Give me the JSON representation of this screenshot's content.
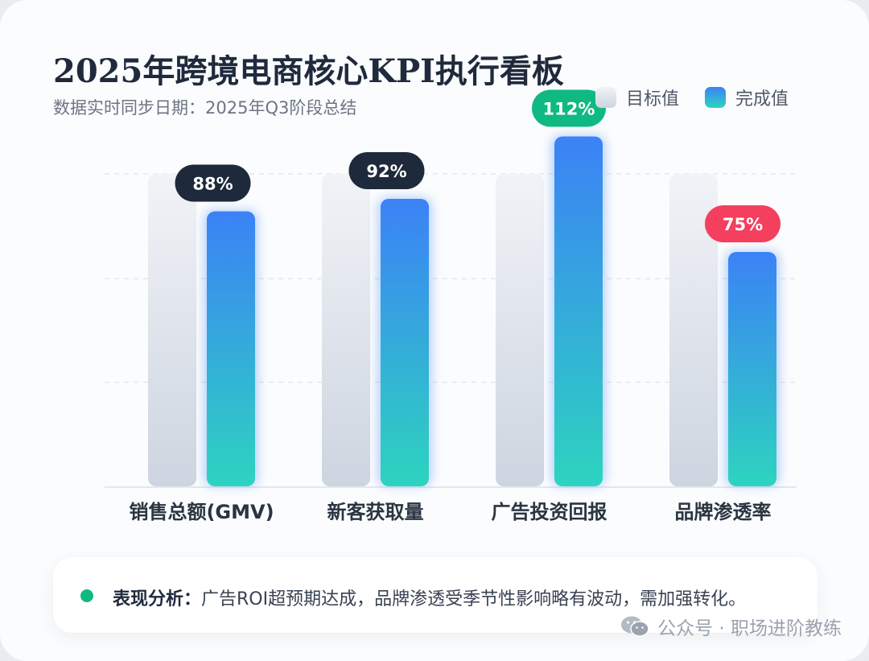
{
  "title": "2025年跨境电商核心KPI执行看板",
  "subtitle": "数据实时同步日期：2025年Q3阶段总结",
  "legend": {
    "target_label": "目标值",
    "actual_label": "完成值"
  },
  "colors": {
    "target_top": "#f1f3f7",
    "target_bottom": "#cdd5e0",
    "actual_top": "#3b82f6",
    "actual_bottom": "#2dd4bf",
    "badge_default": "#1e293b",
    "badge_over": "#10b981",
    "badge_under": "#f43f5e",
    "insight_dot": "#10b981"
  },
  "chart_data": {
    "type": "bar",
    "title": "2025年跨境电商核心KPI执行看板",
    "categories": [
      "销售总额(GMV)",
      "新客获取量",
      "广告投资回报",
      "品牌渗透率"
    ],
    "series": [
      {
        "name": "目标值",
        "values": [
          100,
          100,
          100,
          100
        ]
      },
      {
        "name": "完成值",
        "values": [
          88,
          92,
          112,
          75
        ]
      }
    ],
    "data_labels": [
      "88%",
      "92%",
      "112%",
      "75%"
    ],
    "badge_types": [
      "default",
      "default",
      "over",
      "under"
    ],
    "ylim": [
      0,
      130
    ],
    "grid": true,
    "legend_position": "top-right"
  },
  "insight": {
    "label": "表现分析：",
    "text": "广告ROI超预期达成，品牌渗透受季节性影响略有波动，需加强转化。"
  },
  "watermark": {
    "icon": "wechat-icon",
    "text": "公众号 · 职场进阶教练"
  }
}
